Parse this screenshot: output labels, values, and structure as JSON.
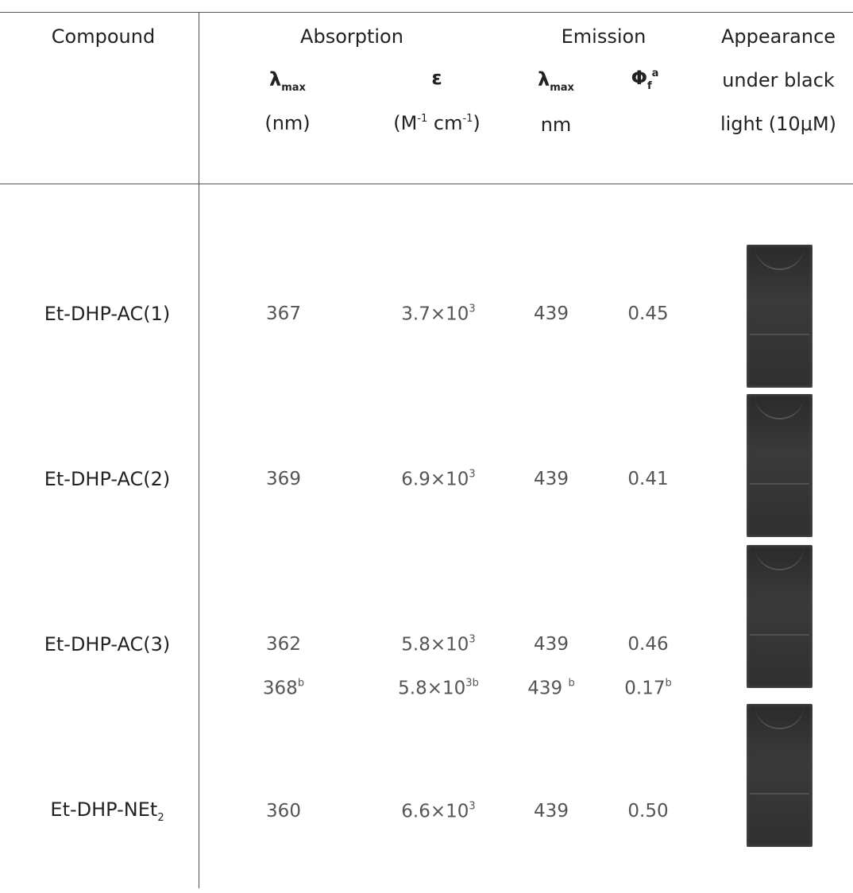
{
  "header": {
    "compound": "Compound",
    "absorption": "Absorption",
    "emission": "Emission",
    "appearance": [
      "Appearance",
      "under black",
      "light (10μM)"
    ],
    "abs_lambda": {
      "symbol": "λ",
      "sub": "max",
      "unit": "(nm)"
    },
    "epsilon": {
      "symbol": "ε",
      "unit_parts": [
        "(M",
        "-1",
        " cm",
        "-1",
        ")"
      ]
    },
    "em_lambda": {
      "symbol": "λ",
      "sub": "max",
      "unit": "nm"
    },
    "phi": {
      "symbol": "Φ",
      "sub": "f",
      "sup": "a"
    }
  },
  "rows": [
    {
      "compound": {
        "text": "Et-DHP-AC(1)"
      },
      "lines": [
        {
          "lambda_abs": {
            "text": "367"
          },
          "epsilon": {
            "text": "3.7×10",
            "sup": "3"
          },
          "lambda_em": {
            "text": "439"
          },
          "phi": {
            "text": "0.45"
          }
        }
      ]
    },
    {
      "compound": {
        "text": "Et-DHP-AC(2)"
      },
      "lines": [
        {
          "lambda_abs": {
            "text": "369"
          },
          "epsilon": {
            "text": "6.9×10",
            "sup": "3"
          },
          "lambda_em": {
            "text": "439"
          },
          "phi": {
            "text": "0.41"
          }
        }
      ]
    },
    {
      "compound": {
        "text": "Et-DHP-AC(3)"
      },
      "lines": [
        {
          "lambda_abs": {
            "text": "362"
          },
          "epsilon": {
            "text": "5.8×10",
            "sup": "3"
          },
          "lambda_em": {
            "text": "439"
          },
          "phi": {
            "text": "0.46"
          }
        },
        {
          "lambda_abs": {
            "text": "368",
            "sup": "b"
          },
          "epsilon": {
            "text": "5.8×10",
            "sup": "3b"
          },
          "lambda_em": {
            "text": "439 ",
            "sup": "b"
          },
          "phi": {
            "text": "0.17",
            "sup": "b"
          }
        }
      ]
    },
    {
      "compound": {
        "text": "Et-DHP-NEt",
        "sub": "2"
      },
      "lines": [
        {
          "lambda_abs": {
            "text": "360"
          },
          "epsilon": {
            "text": "6.6×10",
            "sup": "3"
          },
          "lambda_em": {
            "text": "439"
          },
          "phi": {
            "text": "0.50"
          }
        }
      ]
    }
  ]
}
